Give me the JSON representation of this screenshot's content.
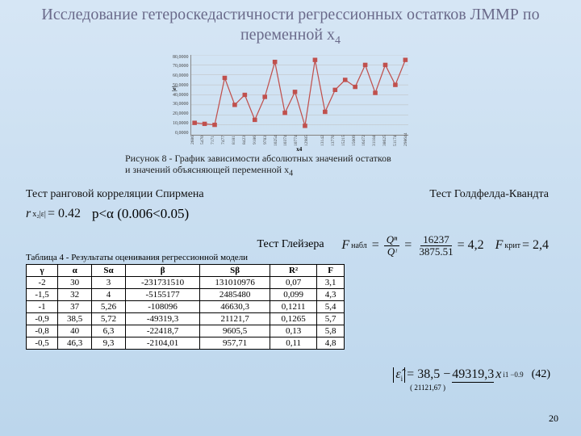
{
  "title": "Исследование гетероскедастичности регрессионных остатков ЛММР по переменной x",
  "title_sub": "4",
  "chart": {
    "yticks": [
      "80,0000",
      "70,0000",
      "60,0000",
      "50,0000",
      "40,0000",
      "30,0000",
      "20,0000",
      "10,0000",
      "0,0000"
    ],
    "xticks": [
      "2606",
      "5470",
      "7171",
      "7477",
      "8181",
      "8423",
      "9186",
      "9783",
      "10254",
      "10374",
      "10774",
      "12985",
      " ",
      "13142",
      "13770",
      "15215",
      "15609",
      "16472",
      "31184",
      "38625",
      "51174",
      "298644"
    ],
    "ylim": [
      0,
      80
    ],
    "xcount": 22,
    "values": [
      12,
      11,
      10,
      57,
      30,
      40,
      15,
      38,
      73,
      22,
      43,
      9,
      75,
      23,
      45,
      55,
      48,
      70,
      42,
      70,
      50,
      75
    ],
    "line_color": "#c0504d",
    "grid_color": "#bdbdbd",
    "ylabel": "|e|",
    "xlabel": "x4"
  },
  "caption_line1": "Рисунок 8 - График зависимости абсолютных значений остатков",
  "caption_line2": "и значений объясняющей переменной x",
  "caption_sub": "4",
  "spearman_title": "Тест ранговой корреляции Спирмена",
  "goldfeld_title": "Тест Голдфелда-Квандта",
  "spearman_r": "r",
  "spearman_rsub": "x₂|ε|",
  "spearman_val": " = 0.42",
  "pvalue": "p<α (0.006<0.05)",
  "gold_F": "F",
  "gold_Fsub": "набл",
  "gold_num": "16237",
  "gold_den": "3875.51",
  "gold_res": " = 4,2",
  "gold_Qn": "Qⁿ",
  "gold_Qd": "Qᶦ",
  "gold_crit": "F",
  "gold_crit_sub": "крит",
  "gold_crit_val": " = 2,4",
  "gleiser_title": "Тест Глейзера",
  "table_caption": "Таблица 4 - Результаты оценивания регрессионной модели",
  "table": {
    "headers": [
      "γ",
      "α",
      "Sα",
      "β",
      "Sβ",
      "R²",
      "F"
    ],
    "rows": [
      [
        "-2",
        "30",
        "3",
        "-231731510",
        "131010976",
        "0,07",
        "3,1"
      ],
      [
        "-1,5",
        "32",
        "4",
        "-5155177",
        "2485480",
        "0,099",
        "4,3"
      ],
      [
        "-1",
        "37",
        "5,26",
        "-108096",
        "46630,3",
        "0,1211",
        "5,4"
      ],
      [
        "-0,9",
        "38,5",
        "5,72",
        "-49319,3",
        "21121,7",
        "0,1265",
        "5,7"
      ],
      [
        "-0,8",
        "40",
        "6,3",
        "-22418,7",
        "9605,5",
        "0,13",
        "5,8"
      ],
      [
        "-0,5",
        "46,3",
        "9,3",
        "-2104,01",
        "957,71",
        "0,11",
        "4,8"
      ]
    ]
  },
  "eq_lhs": "ε̂",
  "eq_lhs_sub": "i",
  "eq_a": " = 38,5 − ",
  "eq_b": "49319,3",
  "eq_b_under": "( 21121,67 )",
  "eq_x": " x",
  "eq_x_sub": "i1",
  "eq_pow": "−0.9",
  "eq_num": "(42)",
  "page": "20"
}
